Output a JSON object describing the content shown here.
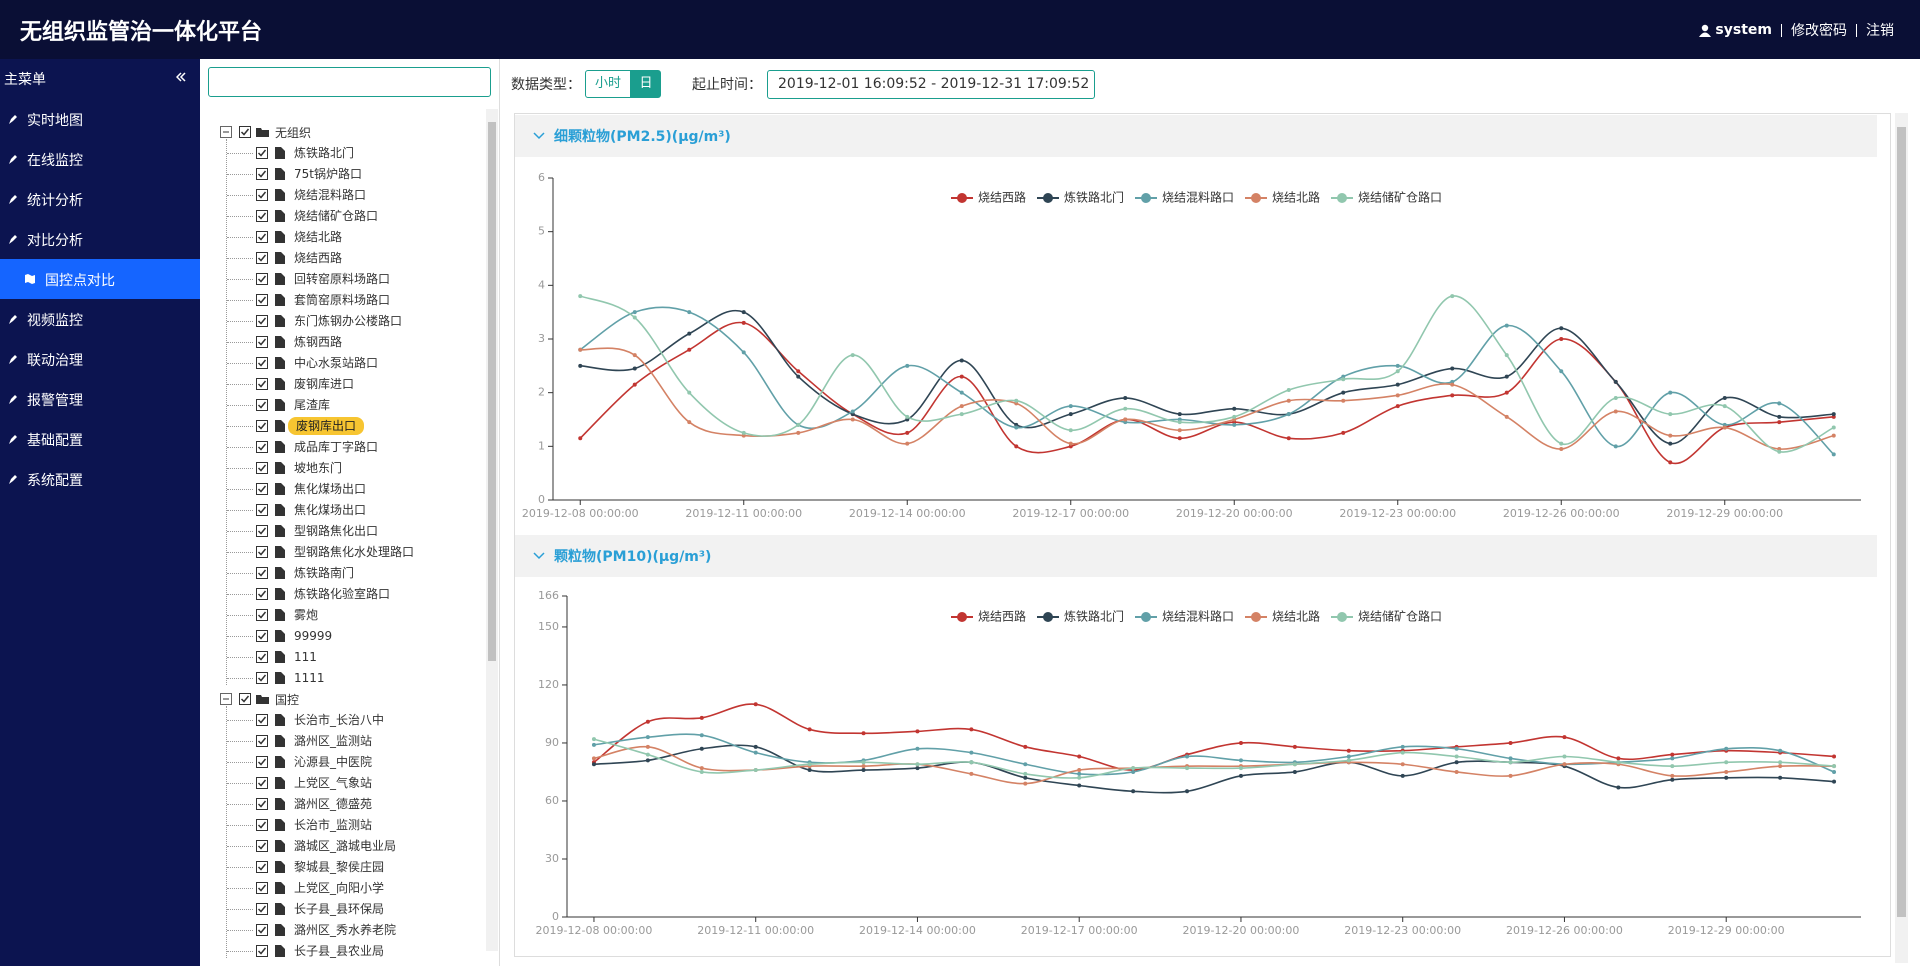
{
  "header": {
    "title": "无组织监管治一体化平台",
    "user": "system",
    "links": [
      "修改密码",
      "注销"
    ]
  },
  "sidebar": {
    "title": "主菜单",
    "menu": [
      {
        "label": "实时地图"
      },
      {
        "label": "在线监控"
      },
      {
        "label": "统计分析"
      },
      {
        "label": "对比分析"
      },
      {
        "label": "国控点对比",
        "sub": true,
        "active": true
      },
      {
        "label": "视频监控"
      },
      {
        "label": "联动治理"
      },
      {
        "label": "报警管理"
      },
      {
        "label": "基础配置"
      },
      {
        "label": "系统配置"
      }
    ]
  },
  "tree": [
    {
      "label": "无组织",
      "children": [
        "炼铁路北门",
        "75t锅炉路口",
        "烧结混料路口",
        "烧结储矿仓路口",
        "烧结北路",
        "烧结西路",
        "回转窑原料场路口",
        "套筒窑原料场路口",
        "东门炼钢办公楼路口",
        "炼钢西路",
        "中心水泵站路口",
        "废钢库进口",
        "尾渣库",
        {
          "label": "废钢库出口",
          "selected": true
        },
        "成品库丁字路口",
        "坡地东门",
        "焦化煤场出口",
        "焦化煤场出口",
        "型钢路焦化出口",
        "型钢路焦化水处理路口",
        "炼铁路南门",
        "炼铁路化验室路口",
        "雾炮",
        "99999",
        "111",
        "1111"
      ]
    },
    {
      "label": "国控",
      "children": [
        "长治市_长治八中",
        "潞州区_监测站",
        "沁源县_中医院",
        "上党区_气象站",
        "潞州区_德盛苑",
        "长治市_监测站",
        "潞城区_潞城电业局",
        "黎城县_黎侯庄园",
        "上党区_向阳小学",
        "长子县_县环保局",
        "潞州区_秀水养老院",
        "长子县_县农业局"
      ]
    }
  ],
  "toolbar": {
    "data_type_label": "数据类型：",
    "options": [
      {
        "label": "小时"
      },
      {
        "label": "日",
        "active": true
      }
    ],
    "time_label": "起止时间：",
    "time_range": "2019-12-01 16:09:52 - 2019-12-31 17:09:52"
  },
  "chart_data": [
    {
      "type": "line",
      "title": "细颗粒物(PM2.5)(μg/m³)",
      "legend": "top",
      "x": [
        "2019-12-08",
        "2019-12-09",
        "2019-12-10",
        "2019-12-11",
        "2019-12-12",
        "2019-12-13",
        "2019-12-14",
        "2019-12-15",
        "2019-12-16",
        "2019-12-17",
        "2019-12-18",
        "2019-12-19",
        "2019-12-20",
        "2019-12-21",
        "2019-12-22",
        "2019-12-23",
        "2019-12-24",
        "2019-12-25",
        "2019-12-26",
        "2019-12-27",
        "2019-12-28",
        "2019-12-29",
        "2019-12-30",
        "2019-12-31"
      ],
      "xlim": [
        "2019-12-07 12:00:00",
        "2019-12-31 12:00:00"
      ],
      "xticks": [
        "2019-12-08 00:00:00",
        "2019-12-11 00:00:00",
        "2019-12-14 00:00:00",
        "2019-12-17 00:00:00",
        "2019-12-20 00:00:00",
        "2019-12-23 00:00:00",
        "2019-12-26 00:00:00",
        "2019-12-29 00:00:00"
      ],
      "ylim": [
        0,
        6
      ],
      "yticks": [
        0,
        1,
        2,
        3,
        4,
        5,
        6
      ],
      "grid": false,
      "series": [
        {
          "name": "烧结西路",
          "color": "#c23531",
          "values": [
            1.15,
            2.15,
            2.8,
            3.3,
            2.4,
            1.6,
            1.25,
            2.3,
            1.0,
            1.0,
            1.5,
            1.15,
            1.45,
            1.15,
            1.25,
            1.75,
            1.95,
            2.0,
            3.0,
            2.2,
            0.7,
            1.35,
            1.45,
            1.55
          ]
        },
        {
          "name": "炼铁路北门",
          "color": "#2f4554",
          "values": [
            2.5,
            2.45,
            3.1,
            3.5,
            2.3,
            1.6,
            1.5,
            2.6,
            1.4,
            1.6,
            1.9,
            1.6,
            1.7,
            1.6,
            2.0,
            2.15,
            2.45,
            2.3,
            3.2,
            2.2,
            1.05,
            1.9,
            1.55,
            1.6
          ]
        },
        {
          "name": "烧结混料路口",
          "color": "#61a0a8",
          "values": [
            2.8,
            3.5,
            3.5,
            2.75,
            1.4,
            1.65,
            2.5,
            2.0,
            1.35,
            1.75,
            1.45,
            1.5,
            1.4,
            1.6,
            2.3,
            2.5,
            2.2,
            3.25,
            2.4,
            1.0,
            2.0,
            1.4,
            1.8,
            0.85
          ]
        },
        {
          "name": "烧结北路",
          "color": "#d48265",
          "values": [
            2.8,
            2.7,
            1.45,
            1.2,
            1.25,
            1.5,
            1.05,
            1.75,
            1.8,
            1.05,
            1.5,
            1.3,
            1.5,
            1.85,
            1.85,
            1.95,
            2.15,
            1.55,
            0.95,
            1.65,
            1.2,
            1.35,
            0.95,
            1.2
          ]
        },
        {
          "name": "烧结储矿仓路口",
          "color": "#91c7ae",
          "values": [
            3.8,
            3.4,
            2.0,
            1.25,
            1.4,
            2.7,
            1.55,
            1.6,
            1.85,
            1.3,
            1.7,
            1.45,
            1.55,
            2.05,
            2.25,
            2.4,
            3.8,
            2.7,
            1.05,
            1.9,
            1.6,
            1.75,
            0.9,
            1.35
          ]
        }
      ]
    },
    {
      "type": "line",
      "title": "颗粒物(PM10)(μg/m³)",
      "legend": "top",
      "x": [
        "2019-12-08",
        "2019-12-09",
        "2019-12-10",
        "2019-12-11",
        "2019-12-12",
        "2019-12-13",
        "2019-12-14",
        "2019-12-15",
        "2019-12-16",
        "2019-12-17",
        "2019-12-18",
        "2019-12-19",
        "2019-12-20",
        "2019-12-21",
        "2019-12-22",
        "2019-12-23",
        "2019-12-24",
        "2019-12-25",
        "2019-12-26",
        "2019-12-27",
        "2019-12-28",
        "2019-12-29",
        "2019-12-30",
        "2019-12-31"
      ],
      "xlim": [
        "2019-12-07 12:00:00",
        "2019-12-31 12:00:00"
      ],
      "xticks": [
        "2019-12-08 00:00:00",
        "2019-12-11 00:00:00",
        "2019-12-14 00:00:00",
        "2019-12-17 00:00:00",
        "2019-12-20 00:00:00",
        "2019-12-23 00:00:00",
        "2019-12-26 00:00:00",
        "2019-12-29 00:00:00"
      ],
      "ylim": [
        0,
        166
      ],
      "yticks": [
        0,
        30,
        60,
        90,
        120,
        150,
        166
      ],
      "grid": false,
      "series": [
        {
          "name": "烧结西路",
          "color": "#c23531",
          "values": [
            80,
            101,
            103,
            110,
            97,
            95,
            96,
            97,
            88,
            83,
            76,
            84,
            90,
            88,
            86,
            86,
            88,
            90,
            93,
            82,
            84,
            86,
            85,
            83
          ]
        },
        {
          "name": "炼铁路北门",
          "color": "#2f4554",
          "values": [
            79,
            81,
            87,
            88,
            76,
            76,
            77,
            80,
            72,
            68,
            65,
            65,
            73,
            75,
            80,
            73,
            80,
            80,
            78,
            67,
            71,
            72,
            72,
            70
          ]
        },
        {
          "name": "烧结混料路口",
          "color": "#61a0a8",
          "values": [
            89,
            93,
            94,
            85,
            80,
            81,
            87,
            85,
            79,
            74,
            75,
            83,
            81,
            80,
            83,
            88,
            87,
            82,
            79,
            80,
            82,
            87,
            86,
            75
          ]
        },
        {
          "name": "烧结北路",
          "color": "#d48265",
          "values": [
            82,
            88,
            77,
            76,
            78,
            78,
            79,
            74,
            69,
            76,
            77,
            78,
            78,
            79,
            80,
            79,
            75,
            73,
            79,
            79,
            73,
            75,
            78,
            78
          ]
        },
        {
          "name": "烧结储矿仓路口",
          "color": "#91c7ae",
          "values": [
            92,
            84,
            75,
            76,
            79,
            80,
            79,
            80,
            74,
            72,
            77,
            77,
            77,
            79,
            81,
            85,
            83,
            80,
            83,
            80,
            78,
            80,
            80,
            78
          ]
        }
      ]
    }
  ]
}
